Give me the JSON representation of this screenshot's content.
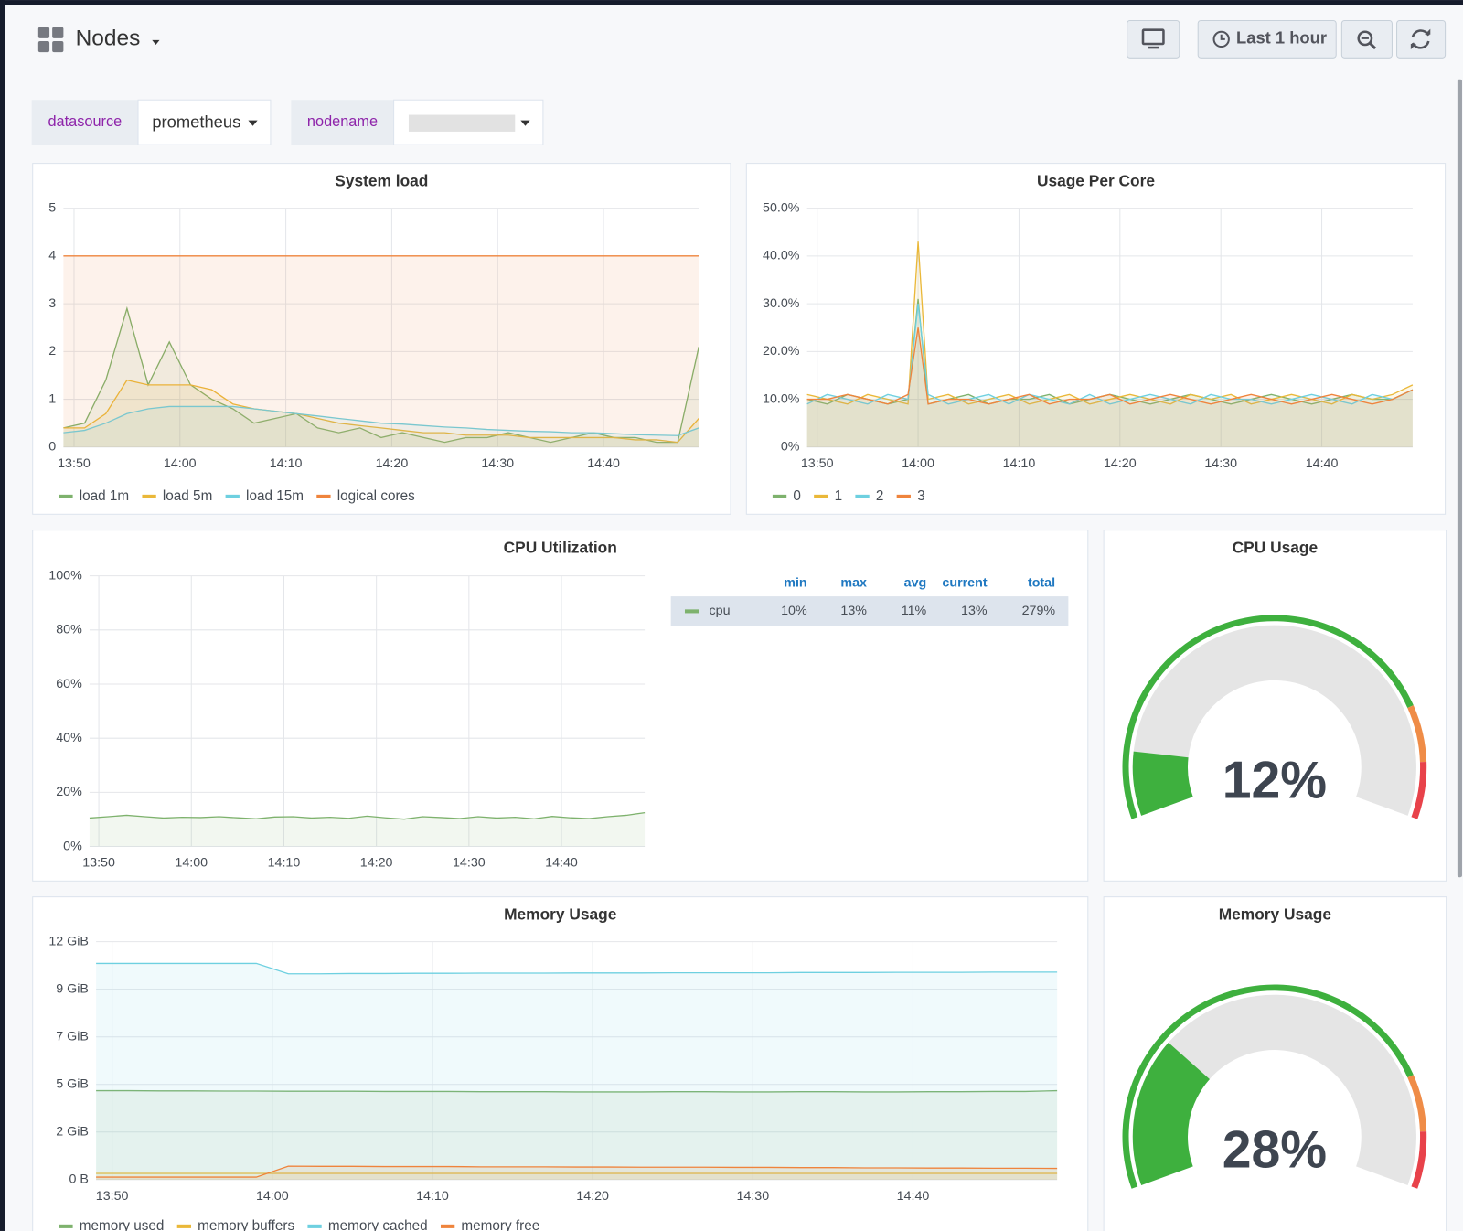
{
  "header": {
    "title": "Nodes",
    "time_range": "Last 1 hour"
  },
  "variables": [
    {
      "label": "datasource",
      "value": "prometheus"
    },
    {
      "label": "nodename"
    }
  ],
  "chart_data": [
    {
      "type": "line",
      "title": "System load",
      "legend": "bottom",
      "grid": true,
      "fill": true,
      "x": [
        "13:49",
        "13:51",
        "13:53",
        "13:55",
        "13:57",
        "13:59",
        "14:01",
        "14:03",
        "14:05",
        "14:07",
        "14:09",
        "14:11",
        "14:13",
        "14:15",
        "14:17",
        "14:19",
        "14:21",
        "14:23",
        "14:25",
        "14:27",
        "14:29",
        "14:31",
        "14:33",
        "14:35",
        "14:37",
        "14:39",
        "14:41",
        "14:43",
        "14:45",
        "14:47",
        "14:49"
      ],
      "xlim": [
        "13:49",
        "14:49"
      ],
      "xticks": [
        "13:50",
        "14:00",
        "14:10",
        "14:20",
        "14:30",
        "14:40"
      ],
      "ylim": [
        0,
        5
      ],
      "yticks": [
        0,
        1,
        2,
        3,
        4,
        5
      ],
      "series": [
        {
          "name": "load 1m",
          "color": "#7eb26d",
          "values": [
            0.4,
            0.5,
            1.4,
            2.9,
            1.3,
            2.2,
            1.3,
            1.0,
            0.8,
            0.5,
            0.6,
            0.7,
            0.4,
            0.3,
            0.4,
            0.2,
            0.3,
            0.2,
            0.1,
            0.2,
            0.2,
            0.3,
            0.2,
            0.1,
            0.2,
            0.3,
            0.2,
            0.2,
            0.1,
            0.1,
            2.1
          ]
        },
        {
          "name": "load 5m",
          "color": "#eab839",
          "values": [
            0.4,
            0.4,
            0.7,
            1.4,
            1.3,
            1.3,
            1.3,
            1.2,
            0.9,
            0.8,
            0.75,
            0.7,
            0.6,
            0.5,
            0.45,
            0.4,
            0.35,
            0.3,
            0.3,
            0.25,
            0.25,
            0.25,
            0.2,
            0.2,
            0.2,
            0.2,
            0.2,
            0.15,
            0.15,
            0.1,
            0.6
          ]
        },
        {
          "name": "load 15m",
          "color": "#6ed0e0",
          "values": [
            0.3,
            0.35,
            0.5,
            0.7,
            0.8,
            0.85,
            0.85,
            0.85,
            0.85,
            0.8,
            0.75,
            0.7,
            0.65,
            0.6,
            0.55,
            0.5,
            0.48,
            0.45,
            0.42,
            0.4,
            0.37,
            0.35,
            0.33,
            0.32,
            0.3,
            0.3,
            0.28,
            0.26,
            0.25,
            0.24,
            0.4
          ]
        },
        {
          "name": "logical cores",
          "color": "#ef843c",
          "values": [
            4,
            4,
            4,
            4,
            4,
            4,
            4,
            4,
            4,
            4,
            4,
            4,
            4,
            4,
            4,
            4,
            4,
            4,
            4,
            4,
            4,
            4,
            4,
            4,
            4,
            4,
            4,
            4,
            4,
            4,
            4
          ]
        }
      ]
    },
    {
      "type": "line",
      "title": "Usage Per Core",
      "legend": "bottom",
      "grid": true,
      "fill": true,
      "x": [
        "13:49",
        "13:51",
        "13:53",
        "13:55",
        "13:57",
        "13:59",
        "14:00",
        "14:01",
        "14:03",
        "14:05",
        "14:07",
        "14:09",
        "14:11",
        "14:13",
        "14:15",
        "14:17",
        "14:19",
        "14:21",
        "14:23",
        "14:25",
        "14:27",
        "14:29",
        "14:31",
        "14:33",
        "14:35",
        "14:37",
        "14:39",
        "14:41",
        "14:43",
        "14:45",
        "14:47",
        "14:49"
      ],
      "xlim": [
        "13:49",
        "14:49"
      ],
      "xticks": [
        "13:50",
        "14:00",
        "14:10",
        "14:20",
        "14:30",
        "14:40"
      ],
      "ylim": [
        0,
        50
      ],
      "yticks": [
        {
          "value": 0,
          "label": "0%"
        },
        {
          "value": 10,
          "label": "10.0%"
        },
        {
          "value": 20,
          "label": "20.0%"
        },
        {
          "value": 30,
          "label": "30.0%"
        },
        {
          "value": 40,
          "label": "40.0%"
        },
        {
          "value": 50,
          "label": "50.0%"
        }
      ],
      "series": [
        {
          "name": "0",
          "color": "#7eb26d",
          "values": [
            10,
            9,
            11,
            10,
            9,
            10,
            31,
            9,
            10,
            11,
            9,
            10,
            10,
            11,
            9,
            10,
            11,
            10,
            9,
            10,
            11,
            10,
            9,
            10,
            11,
            10,
            9,
            10,
            11,
            10,
            10,
            12
          ]
        },
        {
          "name": "1",
          "color": "#eab839",
          "values": [
            11,
            10,
            9,
            11,
            10,
            9,
            43,
            10,
            11,
            9,
            10,
            11,
            9,
            10,
            11,
            9,
            10,
            11,
            10,
            9,
            11,
            10,
            11,
            9,
            10,
            11,
            10,
            9,
            11,
            10,
            11,
            13
          ]
        },
        {
          "name": "2",
          "color": "#6ed0e0",
          "values": [
            9,
            11,
            10,
            9,
            11,
            10,
            30,
            11,
            9,
            10,
            11,
            9,
            11,
            10,
            9,
            11,
            9,
            10,
            11,
            10,
            9,
            11,
            10,
            10,
            9,
            10,
            11,
            10,
            9,
            11,
            10,
            12
          ]
        },
        {
          "name": "3",
          "color": "#ef843c",
          "values": [
            10,
            10,
            11,
            10,
            9,
            11,
            25,
            9,
            10,
            10,
            9,
            10,
            11,
            9,
            10,
            10,
            11,
            9,
            10,
            11,
            10,
            9,
            10,
            11,
            10,
            9,
            10,
            11,
            10,
            9,
            10,
            12
          ]
        }
      ]
    },
    {
      "type": "line",
      "title": "CPU Utilization",
      "legend": "right",
      "grid": true,
      "fill": true,
      "x": [
        "13:49",
        "13:51",
        "13:53",
        "13:55",
        "13:57",
        "13:59",
        "14:01",
        "14:03",
        "14:05",
        "14:07",
        "14:09",
        "14:11",
        "14:13",
        "14:15",
        "14:17",
        "14:19",
        "14:21",
        "14:23",
        "14:25",
        "14:27",
        "14:29",
        "14:31",
        "14:33",
        "14:35",
        "14:37",
        "14:39",
        "14:41",
        "14:43",
        "14:45",
        "14:47",
        "14:49"
      ],
      "xlim": [
        "13:49",
        "14:49"
      ],
      "xticks": [
        "13:50",
        "14:00",
        "14:10",
        "14:20",
        "14:30",
        "14:40"
      ],
      "ylim": [
        0,
        100
      ],
      "yticks": [
        {
          "value": 0,
          "label": "0%"
        },
        {
          "value": 20,
          "label": "20%"
        },
        {
          "value": 40,
          "label": "40%"
        },
        {
          "value": 60,
          "label": "60%"
        },
        {
          "value": 80,
          "label": "80%"
        },
        {
          "value": 100,
          "label": "100%"
        }
      ],
      "legend_columns": [
        "min",
        "max",
        "avg",
        "current",
        "total"
      ],
      "series": [
        {
          "name": "cpu",
          "color": "#7eb26d",
          "stats": [
            "10%",
            "13%",
            "11%",
            "13%",
            "279%"
          ],
          "values": [
            10.5,
            11,
            11.5,
            11,
            10.5,
            10.8,
            10.7,
            11,
            10.6,
            10.2,
            10.9,
            11,
            10.5,
            10.8,
            10.4,
            11.2,
            10.6,
            10.1,
            11,
            10.7,
            10.3,
            11,
            10.5,
            10.8,
            10.2,
            11.1,
            10.6,
            10.3,
            11,
            11.5,
            12.5
          ]
        }
      ]
    },
    {
      "type": "gauge",
      "title": "CPU Usage",
      "value": 12,
      "value_label": "12%",
      "range": [
        0,
        100
      ],
      "color": "#3eb03e",
      "thresholds": [
        {
          "value": 80,
          "color": "#ef8c47"
        },
        {
          "value": 90,
          "color": "#e8424a"
        }
      ]
    },
    {
      "type": "line",
      "title": "Memory Usage",
      "legend": "bottom",
      "grid": true,
      "fill": true,
      "x": [
        "13:49",
        "13:51",
        "13:53",
        "13:55",
        "13:57",
        "13:59",
        "14:01",
        "14:03",
        "14:05",
        "14:07",
        "14:09",
        "14:11",
        "14:13",
        "14:15",
        "14:17",
        "14:19",
        "14:21",
        "14:23",
        "14:25",
        "14:27",
        "14:29",
        "14:31",
        "14:33",
        "14:35",
        "14:37",
        "14:39",
        "14:41",
        "14:43",
        "14:45",
        "14:47",
        "14:49"
      ],
      "xlim": [
        "13:49",
        "14:49"
      ],
      "xticks": [
        "13:50",
        "14:00",
        "14:10",
        "14:20",
        "14:30",
        "14:40"
      ],
      "ylim": [
        0,
        11.5
      ],
      "yticks": [
        {
          "value": 0,
          "label": "0 B"
        },
        {
          "value": 2.3,
          "label": "2 GiB"
        },
        {
          "value": 4.6,
          "label": "5 GiB"
        },
        {
          "value": 6.9,
          "label": "7 GiB"
        },
        {
          "value": 9.2,
          "label": "9 GiB"
        },
        {
          "value": 11.5,
          "label": "12 GiB"
        }
      ],
      "series": [
        {
          "name": "memory used",
          "color": "#7eb26d",
          "values": [
            4.3,
            4.3,
            4.29,
            4.29,
            4.28,
            4.28,
            4.27,
            4.27,
            4.27,
            4.26,
            4.26,
            4.26,
            4.25,
            4.25,
            4.25,
            4.24,
            4.24,
            4.24,
            4.25,
            4.25,
            4.24,
            4.24,
            4.25,
            4.25,
            4.24,
            4.24,
            4.25,
            4.25,
            4.26,
            4.26,
            4.3
          ]
        },
        {
          "name": "memory buffers",
          "color": "#eab839",
          "values": [
            0.3,
            0.3,
            0.3,
            0.3,
            0.3,
            0.3,
            0.3,
            0.3,
            0.3,
            0.3,
            0.3,
            0.3,
            0.3,
            0.3,
            0.3,
            0.3,
            0.3,
            0.3,
            0.3,
            0.3,
            0.3,
            0.3,
            0.3,
            0.3,
            0.3,
            0.3,
            0.3,
            0.3,
            0.3,
            0.3,
            0.3
          ]
        },
        {
          "name": "memory cached",
          "color": "#6ed0e0",
          "values": [
            10.45,
            10.45,
            10.45,
            10.45,
            10.45,
            10.45,
            9.95,
            9.95,
            9.96,
            9.96,
            9.97,
            9.97,
            9.98,
            9.98,
            9.98,
            9.99,
            9.99,
            9.99,
            10,
            10,
            10,
            10,
            10.01,
            10.01,
            10.01,
            10.02,
            10.02,
            10.02,
            10.03,
            10.03,
            10.03
          ]
        },
        {
          "name": "memory free",
          "color": "#ef843c",
          "values": [
            0.12,
            0.12,
            0.12,
            0.12,
            0.12,
            0.12,
            0.65,
            0.64,
            0.64,
            0.63,
            0.63,
            0.63,
            0.62,
            0.62,
            0.62,
            0.61,
            0.61,
            0.6,
            0.6,
            0.6,
            0.59,
            0.59,
            0.58,
            0.58,
            0.57,
            0.57,
            0.56,
            0.56,
            0.55,
            0.55,
            0.54
          ]
        }
      ]
    },
    {
      "type": "gauge",
      "title": "Memory Usage",
      "value": 28,
      "value_label": "28%",
      "range": [
        0,
        100
      ],
      "color": "#3eb03e",
      "thresholds": [
        {
          "value": 80,
          "color": "#ef8c47"
        },
        {
          "value": 90,
          "color": "#e8424a"
        }
      ]
    }
  ]
}
